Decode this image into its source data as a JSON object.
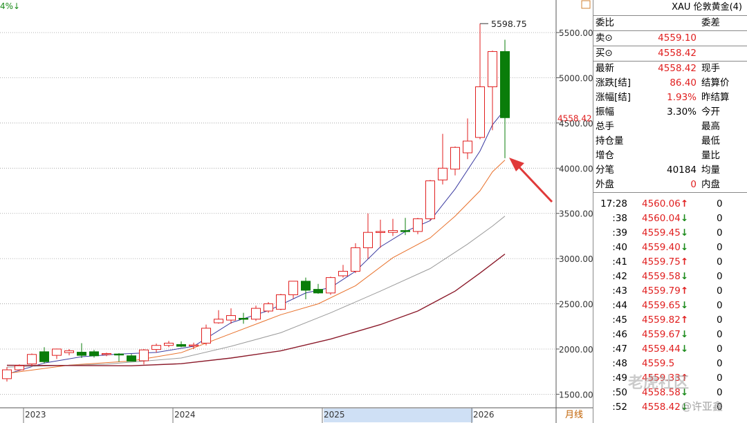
{
  "corner_label": "4%↓",
  "timeframe_label": "月线",
  "price_tag": "4558.42",
  "peak_label": "5598.75",
  "colors": {
    "up": "#e01e1e",
    "down": "#0a7d0a",
    "ma5": "#3a3aa0",
    "ma10": "#e8702a",
    "ma20": "#9a9a9a",
    "ma60": "#8b1a2a",
    "grid": "#9a9a9a",
    "highlight": "#cfe0f5"
  },
  "chart_data": {
    "type": "candlestick",
    "timeframe": "月线",
    "ylim": [
      1350,
      5860
    ],
    "y_ticks": [
      1500,
      2000,
      2500,
      3000,
      3500,
      4000,
      4500,
      5000,
      5500
    ],
    "y_tick_labels": [
      "1500.00",
      "2000.00",
      "2500.00",
      "3000.00",
      "3500.00",
      "4000.00",
      "4500.00",
      "5000.00",
      "5500.00"
    ],
    "x_labels": [
      {
        "label": "2023",
        "index": 2
      },
      {
        "label": "2024",
        "index": 14
      },
      {
        "label": "2025",
        "index": 26
      },
      {
        "label": "2026",
        "index": 38
      }
    ],
    "highlight_range": [
      26,
      38
    ],
    "last_price": 4558.42,
    "peak": {
      "value": 5598.75,
      "index": 38
    },
    "candles": [
      {
        "o": 1672,
        "h": 1800,
        "l": 1640,
        "c": 1770
      },
      {
        "o": 1770,
        "h": 1830,
        "l": 1760,
        "c": 1815
      },
      {
        "o": 1835,
        "h": 1950,
        "l": 1810,
        "c": 1940
      },
      {
        "o": 1970,
        "h": 2020,
        "l": 1840,
        "c": 1860
      },
      {
        "o": 1930,
        "h": 2005,
        "l": 1890,
        "c": 2000
      },
      {
        "o": 1960,
        "h": 2000,
        "l": 1930,
        "c": 1980
      },
      {
        "o": 1965,
        "h": 2065,
        "l": 1900,
        "c": 1930
      },
      {
        "o": 1970,
        "h": 1990,
        "l": 1905,
        "c": 1925
      },
      {
        "o": 1945,
        "h": 1960,
        "l": 1920,
        "c": 1950
      },
      {
        "o": 1945,
        "h": 1955,
        "l": 1860,
        "c": 1935
      },
      {
        "o": 1925,
        "h": 1945,
        "l": 1880,
        "c": 1865
      },
      {
        "o": 1870,
        "h": 2000,
        "l": 1830,
        "c": 1990
      },
      {
        "o": 1995,
        "h": 2060,
        "l": 1960,
        "c": 2040
      },
      {
        "o": 2040,
        "h": 2090,
        "l": 2020,
        "c": 2065
      },
      {
        "o": 2050,
        "h": 2085,
        "l": 2020,
        "c": 2030
      },
      {
        "o": 2045,
        "h": 2070,
        "l": 2000,
        "c": 2045
      },
      {
        "o": 2065,
        "h": 2270,
        "l": 2040,
        "c": 2230
      },
      {
        "o": 2290,
        "h": 2430,
        "l": 2280,
        "c": 2330
      },
      {
        "o": 2320,
        "h": 2450,
        "l": 2280,
        "c": 2370
      },
      {
        "o": 2340,
        "h": 2400,
        "l": 2280,
        "c": 2330
      },
      {
        "o": 2330,
        "h": 2480,
        "l": 2310,
        "c": 2450
      },
      {
        "o": 2420,
        "h": 2520,
        "l": 2400,
        "c": 2500
      },
      {
        "o": 2440,
        "h": 2610,
        "l": 2430,
        "c": 2600
      },
      {
        "o": 2600,
        "h": 2720,
        "l": 2560,
        "c": 2750
      },
      {
        "o": 2750,
        "h": 2790,
        "l": 2550,
        "c": 2650
      },
      {
        "o": 2660,
        "h": 2720,
        "l": 2610,
        "c": 2620
      },
      {
        "o": 2620,
        "h": 2800,
        "l": 2600,
        "c": 2790
      },
      {
        "o": 2810,
        "h": 2930,
        "l": 2790,
        "c": 2860
      },
      {
        "o": 2860,
        "h": 3170,
        "l": 2840,
        "c": 3120
      },
      {
        "o": 3120,
        "h": 3500,
        "l": 3000,
        "c": 3290
      },
      {
        "o": 3290,
        "h": 3430,
        "l": 3120,
        "c": 3300
      },
      {
        "o": 3290,
        "h": 3440,
        "l": 3250,
        "c": 3310
      },
      {
        "o": 3310,
        "h": 3450,
        "l": 3260,
        "c": 3300
      },
      {
        "o": 3300,
        "h": 3450,
        "l": 3270,
        "c": 3440
      },
      {
        "o": 3440,
        "h": 3870,
        "l": 3420,
        "c": 3860
      },
      {
        "o": 3870,
        "h": 4380,
        "l": 3820,
        "c": 4000
      },
      {
        "o": 3990,
        "h": 4240,
        "l": 3920,
        "c": 4230
      },
      {
        "o": 4170,
        "h": 4550,
        "l": 4100,
        "c": 4300
      },
      {
        "o": 4340,
        "h": 5598.75,
        "l": 4320,
        "c": 4900
      },
      {
        "o": 4900,
        "h": 5300,
        "l": 4420,
        "c": 5290
      },
      {
        "o": 5290,
        "h": 5420,
        "l": 4110,
        "c": 4558.42
      }
    ],
    "series": [
      {
        "name": "MA5",
        "points": [
          [
            0,
            1722
          ],
          [
            3,
            1845
          ],
          [
            6,
            1915
          ],
          [
            9,
            1945
          ],
          [
            12,
            1962
          ],
          [
            15,
            2030
          ],
          [
            18,
            2290
          ],
          [
            21,
            2425
          ],
          [
            24,
            2620
          ],
          [
            26,
            2680
          ],
          [
            28,
            2860
          ],
          [
            30,
            3130
          ],
          [
            32,
            3300
          ],
          [
            34,
            3420
          ],
          [
            36,
            3770
          ],
          [
            38,
            4190
          ],
          [
            39,
            4480
          ],
          [
            40,
            4650
          ]
        ]
      },
      {
        "name": "MA10",
        "points": [
          [
            0,
            1730
          ],
          [
            5,
            1822
          ],
          [
            10,
            1868
          ],
          [
            14,
            1960
          ],
          [
            18,
            2170
          ],
          [
            22,
            2380
          ],
          [
            25,
            2500
          ],
          [
            28,
            2700
          ],
          [
            31,
            3010
          ],
          [
            34,
            3230
          ],
          [
            36,
            3470
          ],
          [
            38,
            3750
          ],
          [
            39,
            3960
          ],
          [
            40,
            4090
          ]
        ]
      },
      {
        "name": "MA20",
        "points": [
          [
            0,
            1800
          ],
          [
            8,
            1832
          ],
          [
            14,
            1900
          ],
          [
            18,
            2030
          ],
          [
            22,
            2180
          ],
          [
            26,
            2400
          ],
          [
            30,
            2640
          ],
          [
            34,
            2890
          ],
          [
            37,
            3160
          ],
          [
            39,
            3360
          ],
          [
            40,
            3470
          ]
        ]
      },
      {
        "name": "MA60",
        "points": [
          [
            0,
            1820
          ],
          [
            10,
            1815
          ],
          [
            14,
            1838
          ],
          [
            18,
            1900
          ],
          [
            22,
            1980
          ],
          [
            26,
            2110
          ],
          [
            30,
            2270
          ],
          [
            33,
            2420
          ],
          [
            36,
            2640
          ],
          [
            38,
            2840
          ],
          [
            40,
            3050
          ]
        ]
      }
    ]
  },
  "panel": {
    "title": "XAU 伦敦黄金(4)",
    "weibi": {
      "label": "委比",
      "right": "委差"
    },
    "sell": {
      "label": "卖⊙",
      "value": "4559.10"
    },
    "buy": {
      "label": "买⊙",
      "value": "4558.42"
    },
    "quotes": [
      {
        "label": "最新",
        "value": "4558.42",
        "right": "现手",
        "red": true
      },
      {
        "label": "涨跌[结]",
        "value": "86.40",
        "right": "结算价",
        "red": true
      },
      {
        "label": "涨幅[结]",
        "value": "1.93%",
        "right": "昨结算",
        "red": true
      },
      {
        "label": "振幅",
        "value": "3.30%",
        "right": "今开",
        "red": false
      },
      {
        "label": "总手",
        "value": "",
        "right": "最高",
        "red": false
      },
      {
        "label": "持仓量",
        "value": "",
        "right": "最低",
        "red": false
      },
      {
        "label": "增仓",
        "value": "",
        "right": "量比",
        "red": false
      },
      {
        "label": "分笔",
        "value": "40184",
        "right": "均量",
        "red": false
      },
      {
        "label": "外盘",
        "value": "0",
        "right": "内盘",
        "red": true
      }
    ],
    "ticks": [
      {
        "time": "17:28",
        "price": "4560.06",
        "arrow": "↑",
        "vol": "0"
      },
      {
        "time": ":38",
        "price": "4560.04",
        "arrow": "↓",
        "vol": "0"
      },
      {
        "time": ":39",
        "price": "4559.45",
        "arrow": "↓",
        "vol": "0"
      },
      {
        "time": ":40",
        "price": "4559.40",
        "arrow": "↓",
        "vol": "0"
      },
      {
        "time": ":41",
        "price": "4559.75",
        "arrow": "↑",
        "vol": "0"
      },
      {
        "time": ":42",
        "price": "4559.58",
        "arrow": "↓",
        "vol": "0"
      },
      {
        "time": ":43",
        "price": "4559.79",
        "arrow": "↑",
        "vol": "0"
      },
      {
        "time": ":44",
        "price": "4559.65",
        "arrow": "↓",
        "vol": "0"
      },
      {
        "time": ":45",
        "price": "4559.82",
        "arrow": "↑",
        "vol": "0"
      },
      {
        "time": ":46",
        "price": "4559.67",
        "arrow": "↓",
        "vol": "0"
      },
      {
        "time": ":47",
        "price": "4559.44",
        "arrow": "↓",
        "vol": "0"
      },
      {
        "time": ":48",
        "price": "4559.5",
        "arrow": "",
        "vol": "0"
      },
      {
        "time": ":49",
        "price": "4559.33",
        "arrow": "↑",
        "vol": "0"
      },
      {
        "time": ":50",
        "price": "4558.58",
        "arrow": "↓",
        "vol": "0"
      },
      {
        "time": ":52",
        "price": "4558.42",
        "arrow": "↓",
        "vol": "0"
      }
    ]
  },
  "watermark": {
    "main": "老虎社区",
    "sub": "@许亚鑫"
  }
}
